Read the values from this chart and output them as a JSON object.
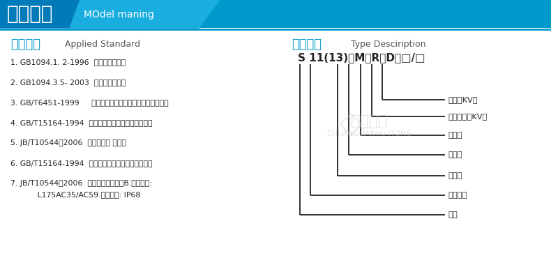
{
  "bg_color": "#ffffff",
  "header_bg": "#0099cc",
  "header_text_cn": "型号含义",
  "header_text_en": "MOdel maning",
  "header_text_color": "#ffffff",
  "section_left_cn": "产品标准",
  "section_left_en": "Applied Standard",
  "section_right_cn": "型号说明",
  "section_right_en": "Type Desciription",
  "section_cn_color": "#0099cc",
  "section_en_color": "#555555",
  "left_items": [
    "1. GB1094.1. 2-1996  《电力变压器》",
    "2. GB1094.3.5- 2003  《电力变压器》",
    "3. GB/T6451-1999     《三相油浸式变压器技术参数和要求》",
    "4. GB/T15164-1994  《油浸式电力变压器负载导则》",
    "5. JB/T10544－2006  《地下式变 压器》",
    "6. GB/T15164-1994  《油浸式电力变压器负载导则》",
    "7. JB/T10544－2006  《地下式变压器》B.绝缘水平:",
    "           L175AC35/AC59.防护等级: IP68"
  ],
  "model_parts": [
    "S",
    " 11(13)",
    "－",
    "M",
    "－",
    "R",
    "－",
    "D",
    "－",
    "□",
    "/",
    "□"
  ],
  "model_labels": [
    "电压（KV）",
    "额定容量（KV）",
    "地埋式",
    "燕断型",
    "全密封",
    "设计序号",
    "三相"
  ],
  "line_color": "#222222",
  "text_color": "#222222",
  "wm_cn": "创联汇通",
  "wm_en": "CHUANGLIANHU ITONG"
}
